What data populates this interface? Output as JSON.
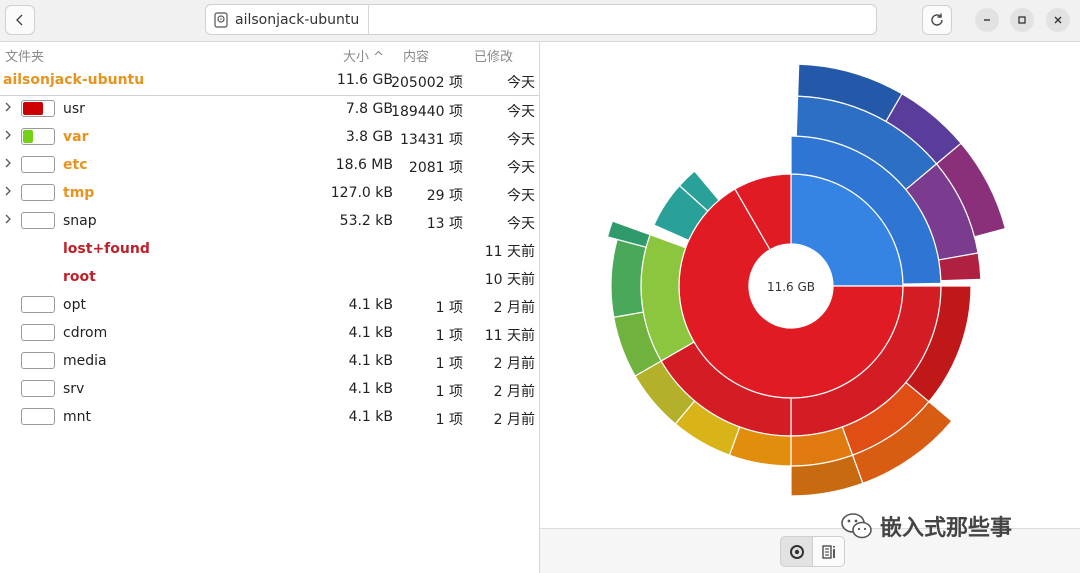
{
  "header": {
    "back_icon": "chevron-left-icon",
    "location": {
      "icon": "disk-icon",
      "label": "ailsonjack-ubuntu"
    },
    "reload_icon": "reload-icon",
    "window_controls": [
      "minimize-icon",
      "maximize-icon",
      "close-icon"
    ]
  },
  "columns": {
    "name": "文件夹",
    "size": "大小",
    "sort_indicator": "^",
    "contents": "内容",
    "modified": "已修改"
  },
  "root": {
    "name": "ailsonjack-ubuntu",
    "size": "11.6 GB",
    "contents": "205002 项",
    "modified": "今天",
    "color": "#e8931e"
  },
  "rows": [
    {
      "name": "usr",
      "size": "7.8 GB",
      "contents": "189440 项",
      "modified": "今天",
      "expandable": true,
      "bar": true,
      "fill": 0.67,
      "fill_color": "#cc0000",
      "style": "plain"
    },
    {
      "name": "var",
      "size": "3.8 GB",
      "contents": "13431 项",
      "modified": "今天",
      "expandable": true,
      "bar": true,
      "fill": 0.33,
      "fill_color": "#73d216",
      "style": "orange"
    },
    {
      "name": "etc",
      "size": "18.6 MB",
      "contents": "2081 项",
      "modified": "今天",
      "expandable": true,
      "bar": true,
      "fill": 0,
      "fill_color": "#cccccc",
      "style": "orange"
    },
    {
      "name": "tmp",
      "size": "127.0 kB",
      "contents": "29 项",
      "modified": "今天",
      "expandable": true,
      "bar": true,
      "fill": 0,
      "fill_color": "#cccccc",
      "style": "orange"
    },
    {
      "name": "snap",
      "size": "53.2 kB",
      "contents": "13 项",
      "modified": "今天",
      "expandable": true,
      "bar": true,
      "fill": 0,
      "fill_color": "#cccccc",
      "style": "plain"
    },
    {
      "name": "lost+found",
      "size": "",
      "contents": "",
      "modified": "11 天前",
      "expandable": false,
      "bar": false,
      "fill": 0,
      "fill_color": "#cccccc",
      "style": "red"
    },
    {
      "name": "root",
      "size": "",
      "contents": "",
      "modified": "10 天前",
      "expandable": false,
      "bar": false,
      "fill": 0,
      "fill_color": "#cccccc",
      "style": "red"
    },
    {
      "name": "opt",
      "size": "4.1 kB",
      "contents": "1 项",
      "modified": "2 月前",
      "expandable": false,
      "bar": true,
      "fill": 0,
      "fill_color": "#cccccc",
      "style": "plain"
    },
    {
      "name": "cdrom",
      "size": "4.1 kB",
      "contents": "1 项",
      "modified": "11 天前",
      "expandable": false,
      "bar": true,
      "fill": 0,
      "fill_color": "#cccccc",
      "style": "plain"
    },
    {
      "name": "media",
      "size": "4.1 kB",
      "contents": "1 项",
      "modified": "2 月前",
      "expandable": false,
      "bar": true,
      "fill": 0,
      "fill_color": "#cccccc",
      "style": "plain"
    },
    {
      "name": "srv",
      "size": "4.1 kB",
      "contents": "1 项",
      "modified": "2 月前",
      "expandable": false,
      "bar": true,
      "fill": 0,
      "fill_color": "#cccccc",
      "style": "plain"
    },
    {
      "name": "mnt",
      "size": "4.1 kB",
      "contents": "1 项",
      "modified": "2 月前",
      "expandable": false,
      "bar": true,
      "fill": 0,
      "fill_color": "#cccccc",
      "style": "plain"
    }
  ],
  "chart": {
    "center_label": "11.6 GB"
  },
  "view_switch": {
    "rings_icon": "rings-chart-icon",
    "treemap_icon": "treemap-chart-icon"
  },
  "watermark": {
    "text": "嵌入式那些事",
    "icon": "wechat-icon"
  }
}
